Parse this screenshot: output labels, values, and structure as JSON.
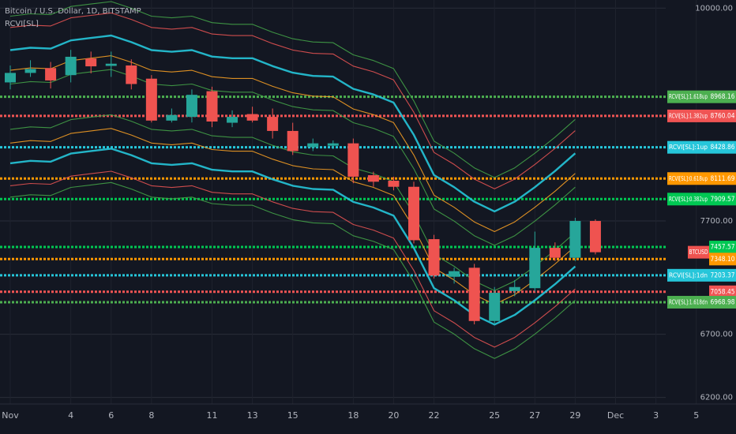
{
  "chart_data": {
    "type": "candlestick",
    "title": "Bitcoin / U.S. Dollar, 1D, BITSTAMP",
    "subtitle": "RCVI[SL]",
    "log_scale": true,
    "grid": true,
    "up_color": "#26a69a",
    "down_color": "#ef5350",
    "categories": [
      "Nov",
      null,
      null,
      "4",
      null,
      "6",
      null,
      "8",
      null,
      null,
      "11",
      null,
      "13",
      null,
      "15",
      null,
      null,
      "18",
      null,
      "20",
      null,
      "22",
      null,
      null,
      "25",
      null,
      "27",
      null,
      "29",
      null,
      "Dec",
      null,
      "3",
      null,
      "5"
    ],
    "open": [
      9128,
      9235,
      9290,
      9210,
      9400,
      9315,
      9320,
      9170,
      8710,
      8750,
      9030,
      8687,
      8780,
      8750,
      8600,
      8430,
      8445,
      8470,
      8145,
      8090,
      8030,
      7530,
      7190,
      7270,
      6810,
      7065,
      7090,
      7450,
      7360,
      7700,
      null,
      null,
      null,
      null,
      null
    ],
    "high": [
      9320,
      9380,
      9360,
      9500,
      9480,
      9480,
      9390,
      9210,
      8840,
      9050,
      9080,
      8820,
      8860,
      8840,
      8687,
      8520,
      8500,
      8520,
      8180,
      8130,
      8080,
      7570,
      7270,
      7305,
      7100,
      7160,
      7600,
      7500,
      7730,
      7715,
      null,
      null,
      null,
      null,
      null
    ],
    "low": [
      9050,
      9190,
      9060,
      9128,
      9230,
      9190,
      9050,
      8690,
      8690,
      8690,
      8640,
      8640,
      8690,
      8520,
      8350,
      8390,
      8410,
      8065,
      8030,
      7995,
      7490,
      7175,
      7130,
      6782,
      6782,
      7020,
      7060,
      7330,
      7330,
      7390,
      null,
      null,
      null,
      null,
      null
    ],
    "close": [
      9235,
      9280,
      9150,
      9420,
      9310,
      9340,
      9110,
      8710,
      8770,
      8990,
      8700,
      8750,
      8710,
      8600,
      8390,
      8470,
      8470,
      8130,
      8080,
      8030,
      7520,
      7200,
      7240,
      6810,
      7050,
      7100,
      7450,
      7360,
      7700,
      7410,
      null,
      null,
      null,
      null,
      null
    ],
    "series": [
      {
        "color": "#43a047",
        "values": [
          9901,
          9930,
          9920,
          10020,
          10050,
          10080,
          9999,
          9901,
          9881,
          9901,
          9823,
          9803,
          9803,
          9708,
          9631,
          9593,
          9584,
          9442,
          9377,
          9284,
          8923,
          8493,
          8368,
          8219,
          8122,
          8219,
          8368,
          8535,
          8723,
          null,
          null,
          null,
          null,
          null,
          null
        ]
      },
      {
        "color": "#e35252",
        "values": [
          9765,
          9793,
          9783,
          9881,
          9911,
          9941,
          9862,
          9765,
          9745,
          9765,
          9687,
          9668,
          9668,
          9574,
          9498,
          9460,
          9452,
          9312,
          9248,
          9156,
          8800,
          8376,
          8253,
          8106,
          8010,
          8106,
          8253,
          8418,
          8603,
          null,
          null,
          null,
          null,
          null,
          null
        ]
      },
      {
        "color": "#26c6da",
        "values": [
          9497,
          9525,
          9515,
          9611,
          9640,
          9669,
          9591,
          9497,
          9478,
          9497,
          9422,
          9403,
          9403,
          9312,
          9238,
          9201,
          9193,
          9056,
          8994,
          8905,
          8559,
          8146,
          8026,
          7884,
          7791,
          7884,
          8026,
          8187,
          8367,
          null,
          null,
          null,
          null,
          null,
          null
        ]
      },
      {
        "color": "#f39c23",
        "values": [
          9265,
          9292,
          9283,
          9376,
          9404,
          9432,
          9357,
          9265,
          9246,
          9265,
          9192,
          9173,
          9173,
          9084,
          9012,
          8976,
          8968,
          8835,
          8774,
          8688,
          8350,
          7947,
          7830,
          7691,
          7600,
          7691,
          7830,
          7987,
          8163,
          null,
          null,
          null,
          null,
          null,
          null
        ]
      },
      {
        "color": "#43a047",
        "values": [
          9110,
          9137,
          9127,
          9219,
          9247,
          9274,
          9200,
          9110,
          9091,
          9110,
          9038,
          9019,
          9019,
          8932,
          8861,
          8826,
          8818,
          8687,
          8628,
          8542,
          8210,
          7814,
          7699,
          7562,
          7473,
          7562,
          7699,
          7853,
          8026,
          null,
          null,
          null,
          null,
          null,
          null
        ]
      },
      {
        "color": "#43a047",
        "values": [
          8617,
          8643,
          8634,
          8720,
          8747,
          8773,
          8703,
          8617,
          8600,
          8617,
          8549,
          8532,
          8532,
          8449,
          8382,
          8349,
          8341,
          8217,
          8161,
          8080,
          7766,
          7392,
          7283,
          7153,
          7069,
          7153,
          7283,
          7429,
          7592,
          null,
          null,
          null,
          null,
          null,
          null
        ]
      },
      {
        "color": "#f39c23",
        "values": [
          8473,
          8498,
          8489,
          8574,
          8600,
          8626,
          8557,
          8473,
          8456,
          8473,
          8406,
          8389,
          8389,
          8307,
          8241,
          8209,
          8201,
          8080,
          8024,
          7945,
          7636,
          7268,
          7161,
          7034,
          6950,
          7034,
          7161,
          7304,
          7465,
          null,
          null,
          null,
          null,
          null,
          null
        ]
      },
      {
        "color": "#26c6da",
        "values": [
          8265,
          8290,
          8281,
          8364,
          8390,
          8415,
          8348,
          8265,
          8249,
          8265,
          8200,
          8183,
          8183,
          8104,
          8040,
          8008,
          8001,
          7882,
          7828,
          7751,
          7449,
          7090,
          6986,
          6861,
          6780,
          6861,
          6986,
          7125,
          7282,
          null,
          null,
          null,
          null,
          null,
          null
        ]
      },
      {
        "color": "#e35252",
        "values": [
          8040,
          8063,
          8055,
          8136,
          8160,
          8185,
          8119,
          8040,
          8023,
          8040,
          7976,
          7960,
          7960,
          7883,
          7820,
          7789,
          7782,
          7667,
          7614,
          7539,
          7246,
          6896,
          6795,
          6674,
          6595,
          6674,
          6795,
          6931,
          7083,
          null,
          null,
          null,
          null,
          null,
          null
        ]
      },
      {
        "color": "#43a047",
        "values": [
          7929,
          7952,
          7944,
          8024,
          8048,
          8072,
          8008,
          7929,
          7913,
          7929,
          7866,
          7850,
          7850,
          7774,
          7712,
          7682,
          7675,
          7561,
          7509,
          7435,
          7146,
          6801,
          6701,
          6582,
          6504,
          6582,
          6701,
          6835,
          6986,
          null,
          null,
          null,
          null,
          null,
          null
        ]
      }
    ],
    "levels": [
      {
        "name": "RCVI[SL]:1.618up",
        "value": 8968.16,
        "color": "#4caf50"
      },
      {
        "name": "RCVI[SL]:1.382up",
        "value": 8760.04,
        "color": "#f05454"
      },
      {
        "name": "RCVI[SL]:1up",
        "value": 8428.86,
        "color": "#26c6da"
      },
      {
        "name": "RCVI[SL]:0.618up",
        "value": 8111.69,
        "color": "#ff9800"
      },
      {
        "name": "RCVI[SL]:0.382up",
        "value": 7909.57,
        "color": "#00c853"
      },
      {
        "value": 7457.57,
        "color": "#00c853"
      },
      {
        "value": 7348.1,
        "value_label": "7348.10",
        "color": "#ff9800"
      },
      {
        "name": "RCVI[SL]:1dn",
        "value": 7203.37,
        "color": "#26c6da"
      },
      {
        "value": 7058.45,
        "color": "#f05454"
      },
      {
        "name": "RCVI[SL]:1.618dn",
        "value": 6968.98,
        "color": "#4caf50"
      }
    ],
    "last_price_tag": "BTCUSD",
    "ylim": [
      6150,
      10100
    ],
    "yticks": [
      {
        "value": 10000,
        "label": "10000.00"
      },
      {
        "value": 7700,
        "label": "7700.00"
      },
      {
        "value": 6700,
        "label": "6700.00"
      },
      {
        "value": 6200,
        "label": "6200.00"
      }
    ]
  }
}
